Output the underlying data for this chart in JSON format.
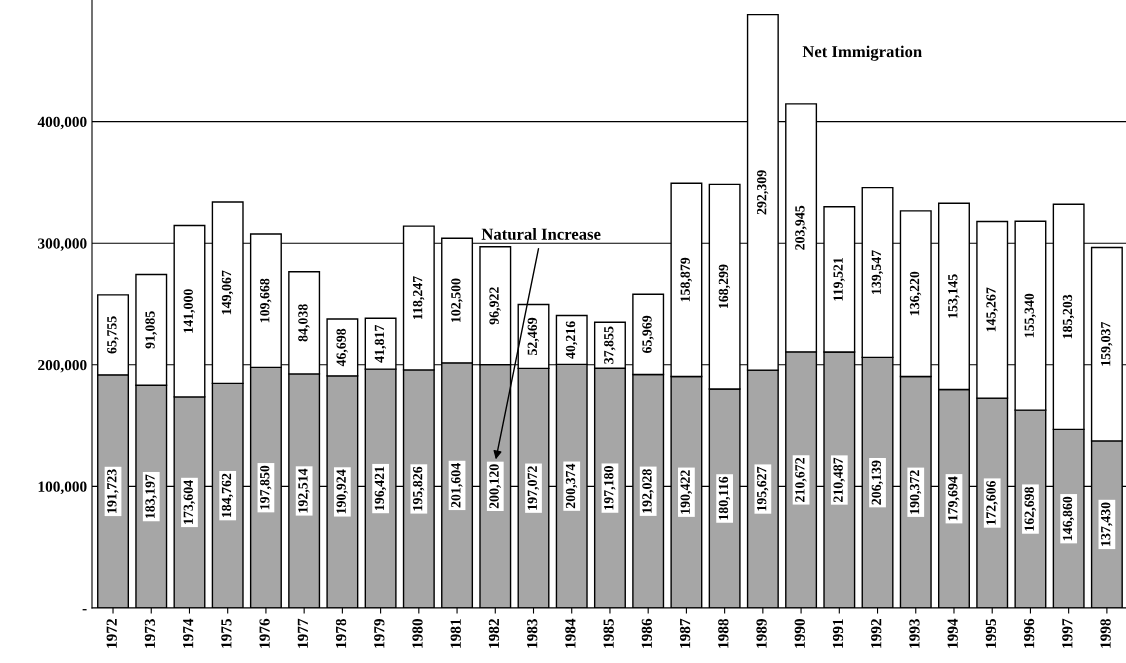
{
  "chart_data": {
    "type": "bar",
    "stacked": true,
    "categories": [
      "1972",
      "1973",
      "1974",
      "1975",
      "1976",
      "1977",
      "1978",
      "1979",
      "1980",
      "1981",
      "1982",
      "1983",
      "1984",
      "1985",
      "1986",
      "1987",
      "1988",
      "1989",
      "1990",
      "1991",
      "1992",
      "1993",
      "1994",
      "1995",
      "1996",
      "1997",
      "1998"
    ],
    "series": [
      {
        "name": "Natural Increase",
        "color": "#a6a6a6",
        "values": [
          191723,
          183197,
          173604,
          184762,
          197850,
          192514,
          190924,
          196421,
          195826,
          201604,
          200120,
          197072,
          200374,
          197180,
          192028,
          190422,
          180116,
          195627,
          210672,
          210487,
          206139,
          190372,
          179694,
          172606,
          162698,
          146860,
          137430
        ],
        "value_labels": [
          "191,723",
          "183,197",
          "173,604",
          "184,762",
          "197,850",
          "192,514",
          "190,924",
          "196,421",
          "195,826",
          "201,604",
          "200,120",
          "197,072",
          "200,374",
          "197,180",
          "192,028",
          "190,422",
          "180,116",
          "195,627",
          "210,672",
          "210,487",
          "206,139",
          "190,372",
          "179,694",
          "172,606",
          "162,698",
          "146,860",
          "137,430"
        ]
      },
      {
        "name": "Net Immigration",
        "color": "#ffffff",
        "values": [
          65755,
          91085,
          141000,
          149067,
          109668,
          84038,
          46698,
          41817,
          118247,
          102500,
          96922,
          52469,
          40216,
          37855,
          65969,
          158879,
          168299,
          292309,
          203945,
          119521,
          139547,
          136220,
          153145,
          145267,
          155340,
          185203,
          159037
        ],
        "value_labels": [
          "65,755",
          "91,085",
          "141,000",
          "149,067",
          "109,668",
          "84,038",
          "46,698",
          "41,817",
          "118,247",
          "102,500",
          "96,922",
          "52,469",
          "40,216",
          "37,855",
          "65,969",
          "158,879",
          "168,299",
          "292,309",
          "203,945",
          "119,521",
          "139,547",
          "136,220",
          "153,145",
          "145,267",
          "155,340",
          "185,203",
          "159,037"
        ]
      }
    ],
    "ylim": [
      0,
      500000
    ],
    "yticks": [
      {
        "value": 0,
        "label": "-"
      },
      {
        "value": 100000,
        "label": "100,000"
      },
      {
        "value": 200000,
        "label": "200,000"
      },
      {
        "value": 300000,
        "label": "300,000"
      },
      {
        "value": 400000,
        "label": "400,000"
      }
    ],
    "grid": "y",
    "legend": false
  }
}
